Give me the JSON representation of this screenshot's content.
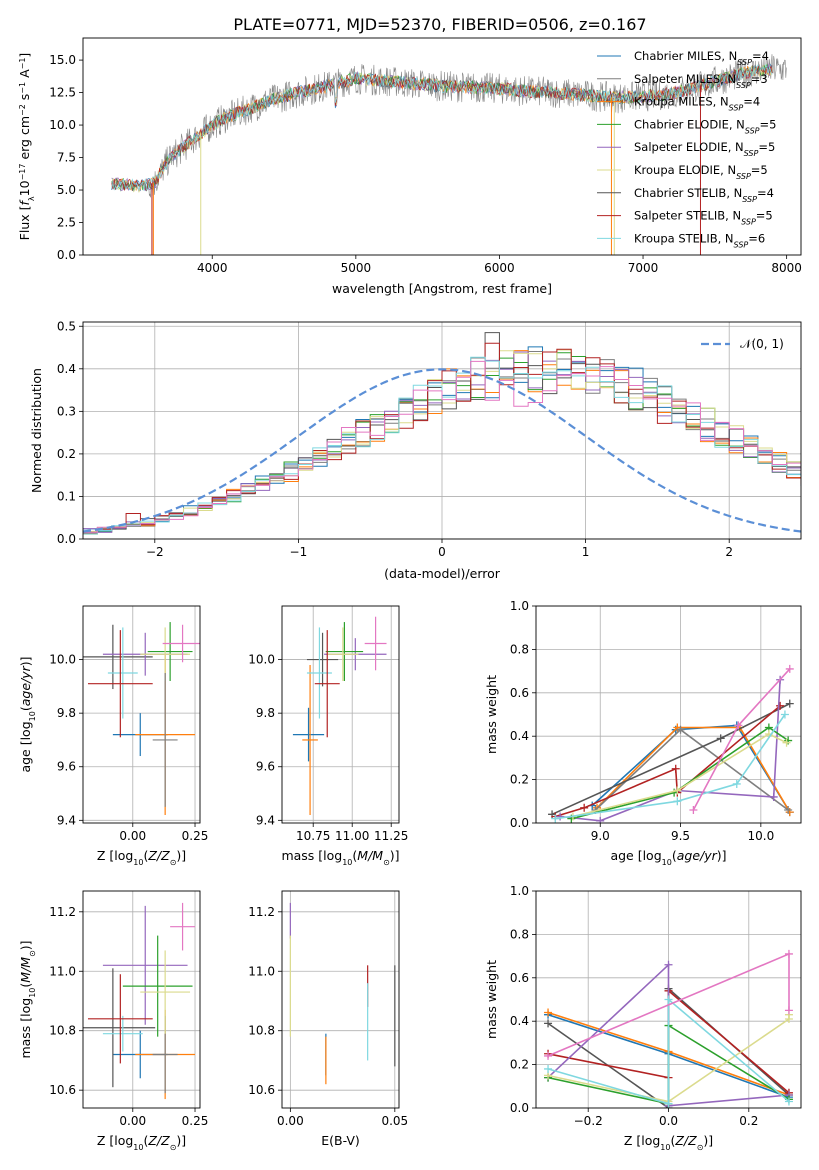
{
  "title": "PLATE=0771, MJD=52370, FIBERID=0506, z=0.167",
  "colors": {
    "Chabrier MILES": "#1f77b4",
    "Salpeter MILES": "#7f7f7f",
    "Kroupa MILES": "#ff7f0e",
    "Chabrier ELODIE": "#2ca02c",
    "Salpeter ELODIE": "#9467bd",
    "Kroupa ELODIE": "#dbdb8d",
    "Chabrier STELIB": "#555555",
    "Salpeter STELIB": "#b22222",
    "Kroupa STELIB": "#7fd8e0",
    "gaussian": "#5b8fd6",
    "extra": "#e377c2",
    "olive": "#bcbd22"
  },
  "chart_data": [
    {
      "type": "line",
      "xlabel": "wavelength [Angstrom, rest frame]",
      "ylabel": "Flux [f_λ 10^-17 erg cm^-2 s^-1 A^-1]",
      "xlim": [
        3100,
        8100
      ],
      "ylim": [
        0,
        16.7
      ],
      "xticks": [
        4000,
        5000,
        6000,
        7000,
        8000
      ],
      "yticks": [
        0.0,
        2.5,
        5.0,
        7.5,
        10.0,
        12.5,
        15.0
      ],
      "grid": false,
      "legend_position": "top-right",
      "series": [
        {
          "name": "Chabrier MILES, N_SSP=4",
          "color_key": "Chabrier MILES"
        },
        {
          "name": "Salpeter MILES, N_SSP=3",
          "color_key": "Salpeter MILES"
        },
        {
          "name": "Kroupa MILES, N_SSP=4",
          "color_key": "Kroupa MILES"
        },
        {
          "name": "Chabrier ELODIE, N_SSP=5",
          "color_key": "Chabrier ELODIE"
        },
        {
          "name": "Salpeter ELODIE, N_SSP=5",
          "color_key": "Salpeter ELODIE"
        },
        {
          "name": "Kroupa ELODIE, N_SSP=5",
          "color_key": "Kroupa ELODIE"
        },
        {
          "name": "Chabrier STELIB, N_SSP=4",
          "color_key": "Chabrier STELIB"
        },
        {
          "name": "Salpeter STELIB, N_SSP=5",
          "color_key": "Salpeter STELIB"
        },
        {
          "name": "Kroupa STELIB, N_SSP=6",
          "color_key": "Kroupa STELIB"
        }
      ],
      "continuum": {
        "x": [
          3300,
          3500,
          3600,
          3700,
          3800,
          3900,
          4000,
          4100,
          4200,
          4400,
          4600,
          4800,
          5000,
          5200,
          5400,
          5600,
          5800,
          6000,
          6200,
          6400,
          6600,
          6800,
          7000,
          7200,
          7400,
          7600,
          7800,
          7900
        ],
        "y": [
          5.5,
          5.3,
          5.6,
          7.4,
          8.3,
          9.2,
          10.0,
          10.6,
          11.0,
          11.9,
          12.5,
          13.0,
          13.6,
          13.4,
          13.2,
          13.0,
          12.9,
          12.8,
          12.6,
          12.5,
          12.3,
          12.1,
          12.2,
          12.4,
          13.0,
          13.7,
          14.2,
          14.3
        ]
      }
    },
    {
      "type": "bar",
      "xlabel": "(data-model)/error",
      "ylabel": "Normed distribution",
      "xlim": [
        -2.5,
        2.5
      ],
      "ylim": [
        0,
        0.51
      ],
      "xticks": [
        -2,
        -1,
        0,
        1,
        2
      ],
      "yticks": [
        0.0,
        0.1,
        0.2,
        0.3,
        0.4,
        0.5
      ],
      "grid": true,
      "legend": [
        "𝒩(0, 1)"
      ],
      "legend_position": "top-right",
      "bin_width": 0.1,
      "bin_start": -2.5,
      "base_density": [
        0.018,
        0.022,
        0.028,
        0.033,
        0.04,
        0.048,
        0.056,
        0.065,
        0.076,
        0.087,
        0.1,
        0.113,
        0.127,
        0.143,
        0.158,
        0.176,
        0.193,
        0.211,
        0.229,
        0.247,
        0.265,
        0.284,
        0.302,
        0.318,
        0.334,
        0.349,
        0.362,
        0.373,
        0.383,
        0.391,
        0.396,
        0.399,
        0.399,
        0.396,
        0.391,
        0.384,
        0.375,
        0.363,
        0.35,
        0.336,
        0.321,
        0.304,
        0.287,
        0.269,
        0.251,
        0.232,
        0.214,
        0.196,
        0.178,
        0.161,
        0.145,
        0.13,
        0.116,
        0.102,
        0.09,
        0.079,
        0.069,
        0.06,
        0.052,
        0.045,
        0.038,
        0.033,
        0.03,
        0.028,
        0.026
      ]
    },
    {
      "type": "scatter",
      "subtype": "errorbar",
      "xlabel": "Z [log10(Z/Z⊙)]",
      "ylabel": "age [log10(age/yr)]",
      "xlim": [
        -0.2,
        0.27
      ],
      "ylim": [
        9.39,
        10.2
      ],
      "xticks": [
        "0.00",
        "0.25"
      ],
      "yticks": [
        "9.4",
        "9.6",
        "9.8",
        "10.0"
      ],
      "grid": true,
      "points": [
        {
          "color_key": "Chabrier MILES",
          "x": 0.03,
          "xerr": 0.11,
          "y": 9.72,
          "yerr": 0.08
        },
        {
          "color_key": "Kroupa MILES",
          "x": 0.13,
          "xerr": 0.12,
          "y": 9.72,
          "yerr": 0.3
        },
        {
          "color_key": "Chabrier STELIB",
          "x": -0.08,
          "xerr": 0.16,
          "y": 10.01,
          "yerr": 0.12
        },
        {
          "color_key": "Salpeter ELODIE",
          "x": 0.05,
          "xerr": 0.17,
          "y": 10.02,
          "yerr": 0.08
        },
        {
          "color_key": "Chabrier ELODIE",
          "x": 0.15,
          "xerr": 0.09,
          "y": 10.03,
          "yerr": 0.11
        },
        {
          "color_key": "Kroupa ELODIE",
          "x": 0.13,
          "xerr": 0.1,
          "y": 10.02,
          "yerr": 0.1
        },
        {
          "color_key": "Kroupa STELIB",
          "x": -0.04,
          "xerr": 0.06,
          "y": 9.95,
          "yerr": 0.17
        },
        {
          "color_key": "Salpeter STELIB",
          "x": -0.05,
          "xerr": 0.13,
          "y": 9.91,
          "yerr": 0.2
        },
        {
          "color_key": "extra",
          "x": 0.2,
          "xerr": 0.08,
          "y": 10.06,
          "yerr": 0.07
        },
        {
          "color_key": "Salpeter MILES",
          "x": 0.13,
          "xerr": 0.05,
          "y": 9.7,
          "yerr": 0.25
        }
      ]
    },
    {
      "type": "scatter",
      "subtype": "errorbar",
      "xlabel": "mass [log10(M/M⊙)]",
      "ylabel": "",
      "xlim": [
        10.55,
        11.3
      ],
      "ylim": [
        9.39,
        10.2
      ],
      "xticks": [
        "10.75",
        "11.00",
        "11.25"
      ],
      "yticks": [
        "9.4",
        "9.6",
        "9.8",
        "10.0"
      ],
      "grid": true,
      "points": [
        {
          "color_key": "Chabrier MILES",
          "x": 10.72,
          "xerr": 0.1,
          "y": 9.72,
          "yerr": 0.1
        },
        {
          "color_key": "Kroupa MILES",
          "x": 10.73,
          "xerr": 0.05,
          "y": 9.7,
          "yerr": 0.28
        },
        {
          "color_key": "Chabrier STELIB",
          "x": 10.81,
          "xerr": 0.1,
          "y": 10.0,
          "yerr": 0.1
        },
        {
          "color_key": "Salpeter ELODIE",
          "x": 11.02,
          "xerr": 0.2,
          "y": 10.02,
          "yerr": 0.06
        },
        {
          "color_key": "Chabrier ELODIE",
          "x": 10.95,
          "xerr": 0.12,
          "y": 10.03,
          "yerr": 0.11
        },
        {
          "color_key": "Kroupa ELODIE",
          "x": 10.94,
          "xerr": 0.1,
          "y": 10.02,
          "yerr": 0.1
        },
        {
          "color_key": "Kroupa STELIB",
          "x": 10.79,
          "xerr": 0.08,
          "y": 9.95,
          "yerr": 0.17
        },
        {
          "color_key": "Salpeter STELIB",
          "x": 10.84,
          "xerr": 0.08,
          "y": 9.91,
          "yerr": 0.2
        },
        {
          "color_key": "extra",
          "x": 11.15,
          "xerr": 0.07,
          "y": 10.06,
          "yerr": 0.1
        }
      ]
    },
    {
      "type": "line",
      "xlabel": "age [log10(age/yr)]",
      "ylabel": "mass weight",
      "xlim": [
        8.6,
        10.25
      ],
      "ylim": [
        0,
        1.0
      ],
      "xticks": [
        "9.0",
        "9.5",
        "10.0"
      ],
      "yticks": [
        "0.0",
        "0.2",
        "0.4",
        "0.6",
        "0.8",
        "1.0"
      ],
      "grid": true,
      "series": [
        {
          "color_key": "Chabrier MILES",
          "x": [
            8.95,
            9.47,
            9.85,
            10.18
          ],
          "y": [
            0.08,
            0.43,
            0.45,
            0.05
          ]
        },
        {
          "color_key": "Kroupa MILES",
          "x": [
            8.98,
            9.48,
            9.87,
            10.18
          ],
          "y": [
            0.07,
            0.44,
            0.44,
            0.05
          ]
        },
        {
          "color_key": "Salpeter MILES",
          "x": [
            8.97,
            9.5,
            10.17
          ],
          "y": [
            0.06,
            0.43,
            0.06
          ]
        },
        {
          "color_key": "Chabrier STELIB",
          "x": [
            8.7,
            9.75,
            10.18
          ],
          "y": [
            0.04,
            0.39,
            0.55
          ]
        },
        {
          "color_key": "Salpeter STELIB",
          "x": [
            8.72,
            8.9,
            9.47,
            9.48,
            10.12
          ],
          "y": [
            0.03,
            0.07,
            0.25,
            0.14,
            0.54
          ]
        },
        {
          "color_key": "Salpeter ELODIE",
          "x": [
            8.75,
            9.0,
            9.48,
            10.08,
            10.12
          ],
          "y": [
            0.03,
            0.01,
            0.15,
            0.12,
            0.66
          ]
        },
        {
          "color_key": "Chabrier ELODIE",
          "x": [
            8.82,
            9.46,
            10.05,
            10.17
          ],
          "y": [
            0.02,
            0.14,
            0.44,
            0.38
          ]
        },
        {
          "color_key": "Kroupa ELODIE",
          "x": [
            8.83,
            9.48,
            10.05,
            10.16
          ],
          "y": [
            0.03,
            0.15,
            0.41,
            0.37
          ]
        },
        {
          "color_key": "Kroupa STELIB",
          "x": [
            8.72,
            9.48,
            9.85,
            10.15
          ],
          "y": [
            0.02,
            0.1,
            0.18,
            0.5
          ]
        },
        {
          "color_key": "extra",
          "x": [
            9.58,
            9.86,
            10.18
          ],
          "y": [
            0.06,
            0.45,
            0.71
          ]
        }
      ]
    },
    {
      "type": "scatter",
      "subtype": "errorbar",
      "xlabel": "Z [log10(Z/Z⊙)]",
      "ylabel": "mass [log10(M/M⊙)]",
      "xlim": [
        -0.2,
        0.27
      ],
      "ylim": [
        10.54,
        11.27
      ],
      "xticks": [
        "0.00",
        "0.25"
      ],
      "yticks": [
        "10.6",
        "10.8",
        "11.0",
        "11.2"
      ],
      "grid": true,
      "points": [
        {
          "color_key": "Chabrier MILES",
          "x": 0.03,
          "xerr": 0.11,
          "y": 10.72,
          "yerr": 0.08
        },
        {
          "color_key": "Kroupa MILES",
          "x": 0.13,
          "xerr": 0.12,
          "y": 10.72,
          "yerr": 0.15
        },
        {
          "color_key": "Salpeter MILES",
          "x": 0.13,
          "xerr": 0.05,
          "y": 10.72,
          "yerr": 0.13
        },
        {
          "color_key": "Chabrier STELIB",
          "x": -0.08,
          "xerr": 0.17,
          "y": 10.81,
          "yerr": 0.2
        },
        {
          "color_key": "Salpeter ELODIE",
          "x": 0.05,
          "xerr": 0.17,
          "y": 11.02,
          "yerr": 0.2
        },
        {
          "color_key": "Chabrier ELODIE",
          "x": 0.1,
          "xerr": 0.14,
          "y": 10.95,
          "yerr": 0.17
        },
        {
          "color_key": "Kroupa ELODIE",
          "x": 0.13,
          "xerr": 0.1,
          "y": 10.93,
          "yerr": 0.14
        },
        {
          "color_key": "Kroupa STELIB",
          "x": -0.04,
          "xerr": 0.08,
          "y": 10.79,
          "yerr": 0.06
        },
        {
          "color_key": "Salpeter STELIB",
          "x": -0.05,
          "xerr": 0.13,
          "y": 10.84,
          "yerr": 0.15
        },
        {
          "color_key": "extra",
          "x": 0.2,
          "xerr": 0.05,
          "y": 11.15,
          "yerr": 0.08
        }
      ]
    },
    {
      "type": "scatter",
      "subtype": "errorbar",
      "xlabel": "E(B-V)",
      "ylabel": "",
      "xlim": [
        -0.004,
        0.052
      ],
      "ylim": [
        10.54,
        11.27
      ],
      "xticks": [
        "0.00",
        "0.05"
      ],
      "yticks": [
        "10.6",
        "10.8",
        "11.0",
        "11.2"
      ],
      "grid": true,
      "points": [
        {
          "color_key": "Salpeter ELODIE",
          "x": 0.0,
          "xerr": 0,
          "y": 11.17,
          "yerr": 0.06
        },
        {
          "color_key": "Kroupa ELODIE",
          "x": 0.0,
          "xerr": 0,
          "y": 10.95,
          "yerr": 0.17
        },
        {
          "color_key": "Chabrier MILES",
          "x": 0.017,
          "xerr": 0,
          "y": 10.72,
          "yerr": 0.07
        },
        {
          "color_key": "Kroupa MILES",
          "x": 0.017,
          "xerr": 0,
          "y": 10.7,
          "yerr": 0.08
        },
        {
          "color_key": "Salpeter STELIB",
          "x": 0.037,
          "xerr": 0,
          "y": 10.95,
          "yerr": 0.07
        },
        {
          "color_key": "Kroupa STELIB",
          "x": 0.037,
          "xerr": 0,
          "y": 10.83,
          "yerr": 0.13
        },
        {
          "color_key": "Chabrier STELIB",
          "x": 0.05,
          "xerr": 0,
          "y": 10.85,
          "yerr": 0.17
        }
      ]
    },
    {
      "type": "line",
      "xlabel": "Z [log10(Z/Z⊙)]",
      "ylabel": "mass weight",
      "xlim": [
        -0.33,
        0.33
      ],
      "ylim": [
        0,
        1.0
      ],
      "xticks": [
        "−0.2",
        "0.0",
        "0.2"
      ],
      "yticks": [
        "0.0",
        "0.2",
        "0.4",
        "0.6",
        "0.8",
        "1.0"
      ],
      "grid": true,
      "series": [
        {
          "color_key": "Chabrier MILES",
          "x": [
            -0.3,
            0.0,
            0.3
          ],
          "y": [
            0.43,
            0.25,
            0.05
          ]
        },
        {
          "color_key": "Kroupa MILES",
          "x": [
            -0.3,
            0.0,
            0.3
          ],
          "y": [
            0.44,
            0.26,
            0.06
          ]
        },
        {
          "color_key": "Chabrier STELIB",
          "x": [
            -0.3,
            0.0,
            0.0,
            0.3
          ],
          "y": [
            0.39,
            0.0,
            0.55,
            0.06
          ]
        },
        {
          "color_key": "Salpeter STELIB",
          "x": [
            -0.3,
            0.0,
            0.0,
            0.3
          ],
          "y": [
            0.25,
            0.14,
            0.54,
            0.07
          ]
        },
        {
          "color_key": "Salpeter ELODIE",
          "x": [
            -0.3,
            0.0,
            0.0,
            0.3
          ],
          "y": [
            0.14,
            0.66,
            0.01,
            0.06
          ]
        },
        {
          "color_key": "Chabrier ELODIE",
          "x": [
            -0.3,
            0.0,
            0.0,
            0.3
          ],
          "y": [
            0.14,
            0.02,
            0.38,
            0.04
          ]
        },
        {
          "color_key": "Kroupa ELODIE",
          "x": [
            -0.3,
            0.0,
            0.3,
            0.3
          ],
          "y": [
            0.15,
            0.03,
            0.41,
            0.43
          ]
        },
        {
          "color_key": "Kroupa STELIB",
          "x": [
            -0.3,
            0.0,
            0.0,
            0.3
          ],
          "y": [
            0.18,
            0.02,
            0.5,
            0.03
          ]
        },
        {
          "color_key": "extra",
          "x": [
            -0.3,
            0.3,
            0.3
          ],
          "y": [
            0.24,
            0.71,
            0.45
          ]
        }
      ]
    }
  ]
}
